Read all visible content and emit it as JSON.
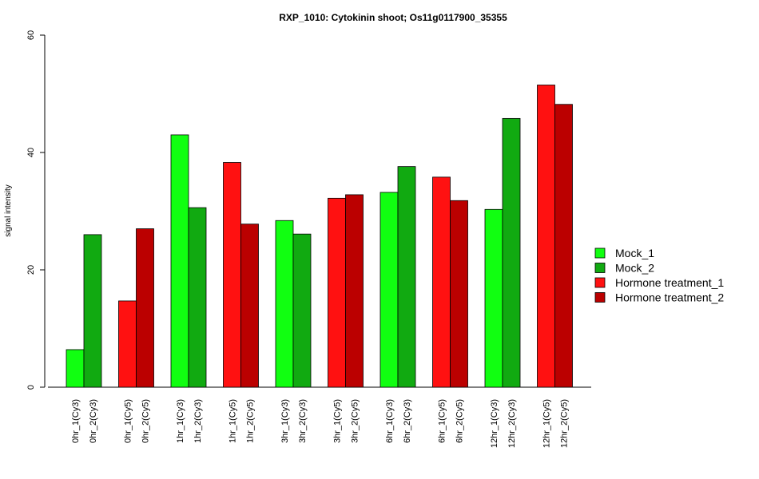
{
  "chart_data": {
    "type": "bar",
    "title": "RXP_1010: Cytokinin shoot; Os11g0117900_35355",
    "ylabel": "signal intensity",
    "xlabel": "",
    "ylim": [
      0,
      60
    ],
    "yticks": [
      0,
      20,
      40,
      60
    ],
    "grid": false,
    "legend_position": "right",
    "legend": [
      {
        "name": "Mock_1",
        "color": "#11ff11"
      },
      {
        "name": "Mock_2",
        "color": "#11aa11"
      },
      {
        "name": "Hormone treatment_1",
        "color": "#ff1111"
      },
      {
        "name": "Hormone treatment_2",
        "color": "#bb0000"
      }
    ],
    "groups": [
      {
        "bars": [
          {
            "label": "0hr_1(Cy3)",
            "value": 6.4,
            "series": 0
          },
          {
            "label": "0hr_2(Cy3)",
            "value": 26.0,
            "series": 1
          }
        ]
      },
      {
        "bars": [
          {
            "label": "0hr_1(Cy5)",
            "value": 14.7,
            "series": 2
          },
          {
            "label": "0hr_2(Cy5)",
            "value": 27.0,
            "series": 3
          }
        ]
      },
      {
        "bars": [
          {
            "label": "1hr_1(Cy3)",
            "value": 43.0,
            "series": 0
          },
          {
            "label": "1hr_2(Cy3)",
            "value": 30.6,
            "series": 1
          }
        ]
      },
      {
        "bars": [
          {
            "label": "1hr_1(Cy5)",
            "value": 38.3,
            "series": 2
          },
          {
            "label": "1hr_2(Cy5)",
            "value": 27.8,
            "series": 3
          }
        ]
      },
      {
        "bars": [
          {
            "label": "3hr_1(Cy3)",
            "value": 28.4,
            "series": 0
          },
          {
            "label": "3hr_2(Cy3)",
            "value": 26.1,
            "series": 1
          }
        ]
      },
      {
        "bars": [
          {
            "label": "3hr_1(Cy5)",
            "value": 32.2,
            "series": 2
          },
          {
            "label": "3hr_2(Cy5)",
            "value": 32.8,
            "series": 3
          }
        ]
      },
      {
        "bars": [
          {
            "label": "6hr_1(Cy3)",
            "value": 33.2,
            "series": 0
          },
          {
            "label": "6hr_2(Cy3)",
            "value": 37.6,
            "series": 1
          }
        ]
      },
      {
        "bars": [
          {
            "label": "6hr_1(Cy5)",
            "value": 35.8,
            "series": 2
          },
          {
            "label": "6hr_2(Cy5)",
            "value": 31.8,
            "series": 3
          }
        ]
      },
      {
        "bars": [
          {
            "label": "12hr_1(Cy3)",
            "value": 30.3,
            "series": 0
          },
          {
            "label": "12hr_2(Cy3)",
            "value": 45.8,
            "series": 1
          }
        ]
      },
      {
        "bars": [
          {
            "label": "12hr_1(Cy5)",
            "value": 51.5,
            "series": 2
          },
          {
            "label": "12hr_2(Cy5)",
            "value": 48.2,
            "series": 3
          }
        ]
      }
    ]
  }
}
